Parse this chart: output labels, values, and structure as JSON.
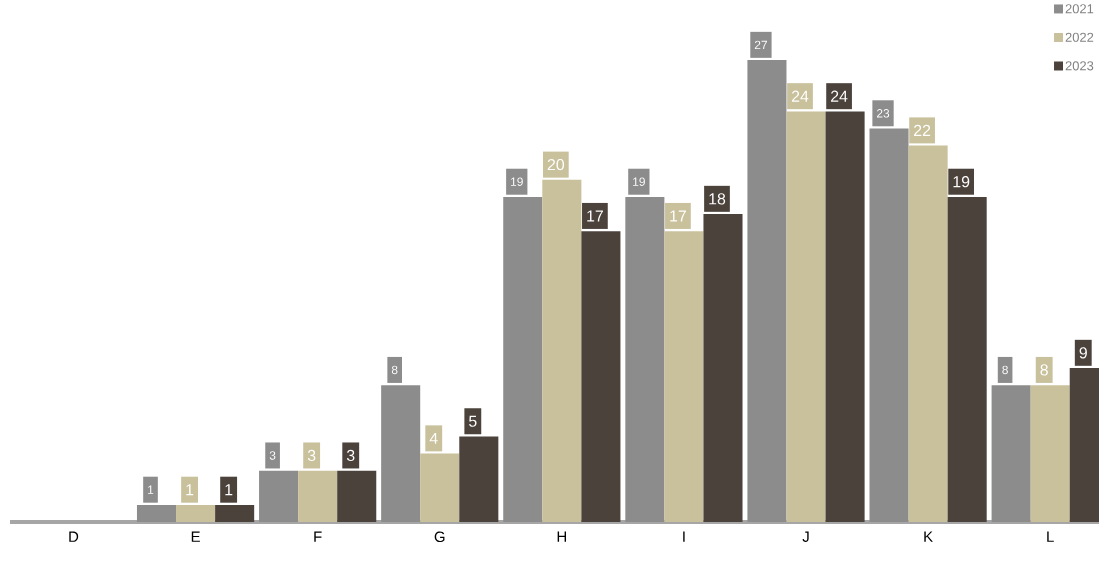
{
  "chart_data": {
    "type": "bar",
    "categories": [
      "D",
      "E",
      "F",
      "G",
      "H",
      "I",
      "J",
      "K",
      "L"
    ],
    "series": [
      {
        "name": "2021",
        "color": "#8c8c8c",
        "values": [
          null,
          1,
          3,
          8,
          19,
          19,
          27,
          23,
          8
        ]
      },
      {
        "name": "2022",
        "color": "#c9c09c",
        "values": [
          null,
          1,
          3,
          4,
          20,
          17,
          24,
          22,
          8
        ]
      },
      {
        "name": "2023",
        "color": "#4b423c",
        "values": [
          null,
          1,
          3,
          5,
          17,
          18,
          24,
          19,
          9
        ]
      }
    ],
    "data_labels": true,
    "legend": "top right"
  }
}
